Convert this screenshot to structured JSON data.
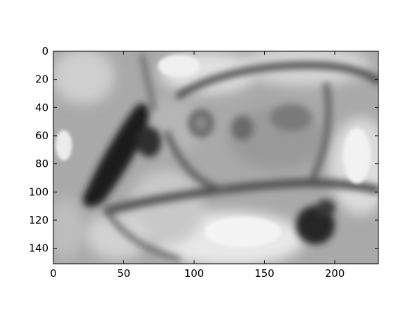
{
  "chart_data": {
    "type": "heatmap",
    "title": "",
    "xlabel": "",
    "ylabel": "",
    "colormap": "gray",
    "image_width": 231,
    "image_height": 151,
    "xlim": [
      0,
      231
    ],
    "ylim": [
      151,
      0
    ],
    "x_ticks": [
      0,
      50,
      100,
      150,
      200
    ],
    "y_ticks": [
      0,
      20,
      40,
      60,
      80,
      100,
      120,
      140
    ],
    "x_tick_labels": [
      "0",
      "50",
      "100",
      "150",
      "200"
    ],
    "y_tick_labels": [
      "0",
      "20",
      "40",
      "60",
      "80",
      "100",
      "120",
      "140"
    ],
    "grid": false,
    "legend": "none"
  }
}
